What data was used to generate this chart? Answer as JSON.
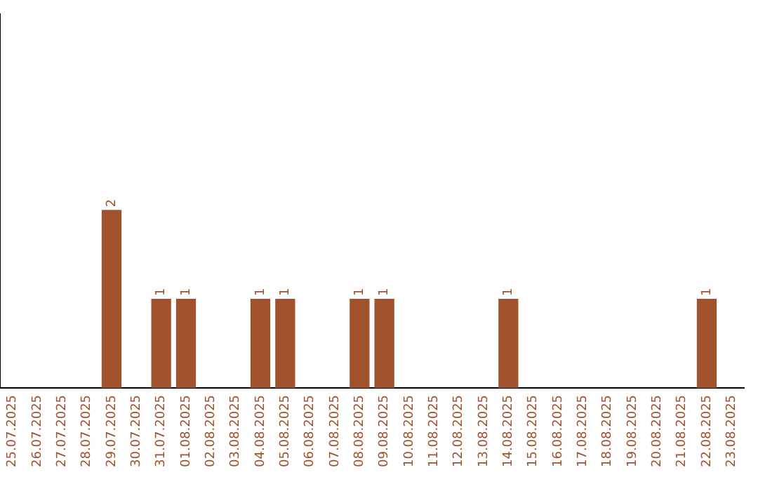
{
  "chart_data": {
    "type": "bar",
    "categories": [
      "25.07.2025",
      "26.07.2025",
      "27.07.2025",
      "28.07.2025",
      "29.07.2025",
      "30.07.2025",
      "31.07.2025",
      "01.08.2025",
      "02.08.2025",
      "03.08.2025",
      "04.08.2025",
      "05.08.2025",
      "06.08.2025",
      "07.08.2025",
      "08.08.2025",
      "09.08.2025",
      "10.08.2025",
      "11.08.2025",
      "12.08.2025",
      "13.08.2025",
      "14.08.2025",
      "15.08.2025",
      "16.08.2025",
      "17.08.2025",
      "18.08.2025",
      "19.08.2025",
      "20.08.2025",
      "21.08.2025",
      "22.08.2025",
      "23.08.2025"
    ],
    "values": [
      0,
      0,
      0,
      0,
      2,
      0,
      1,
      1,
      0,
      0,
      1,
      1,
      0,
      0,
      1,
      1,
      0,
      0,
      0,
      0,
      1,
      0,
      0,
      0,
      0,
      0,
      0,
      0,
      1,
      0
    ],
    "value_labels": [
      null,
      null,
      null,
      null,
      "2",
      null,
      "1",
      "1",
      null,
      null,
      "1",
      "1",
      null,
      null,
      "1",
      "1",
      null,
      null,
      null,
      null,
      "1",
      null,
      null,
      null,
      null,
      null,
      null,
      null,
      "1",
      null
    ],
    "color": "#a0522d",
    "ylim": [
      0,
      4.2
    ],
    "grid": false,
    "legend": false
  }
}
